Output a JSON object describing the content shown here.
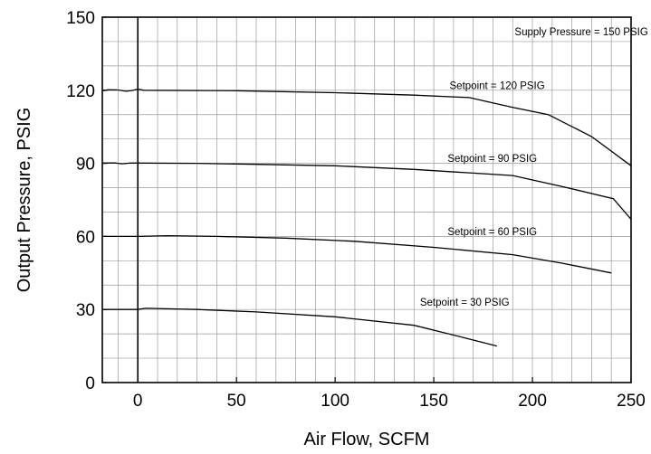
{
  "chart_data": {
    "type": "line",
    "xlabel": "Air Flow, SCFM",
    "ylabel": "Output Pressure, PSIG",
    "xlim": [
      -18,
      250
    ],
    "ylim": [
      0,
      150
    ],
    "xticks": [
      0,
      50,
      100,
      150,
      200,
      250
    ],
    "yticks": [
      0,
      30,
      60,
      90,
      120,
      150
    ],
    "x_tick_labels": [
      "0",
      "50",
      "100",
      "150",
      "200",
      "250"
    ],
    "y_tick_labels": [
      "0",
      "30",
      "60",
      "90",
      "120",
      "150"
    ],
    "x_minor_step": 10,
    "y_minor_step": 10,
    "grid": true,
    "zero_reference_line": 0,
    "annotations": [
      {
        "text": "Supply Pressure = 150 PSIG",
        "x": 191,
        "y": 144
      },
      {
        "text": "Setpoint = 120 PSIG",
        "x": 158,
        "y": 122
      },
      {
        "text": "Setpoint = 90 PSIG",
        "x": 157,
        "y": 92
      },
      {
        "text": "Setpoint = 60 PSIG",
        "x": 157,
        "y": 62
      },
      {
        "text": "Setpoint = 30 PSIG",
        "x": 143,
        "y": 33
      }
    ],
    "series": [
      {
        "values": [
          [
            -18,
            119.8
          ],
          [
            -15,
            120.2
          ],
          [
            -10,
            120.1
          ],
          [
            -6,
            119.6
          ],
          [
            -3,
            119.9
          ],
          [
            0,
            120.5
          ],
          [
            3,
            120.0
          ],
          [
            50,
            119.8
          ],
          [
            100,
            119.0
          ],
          [
            140,
            118.0
          ],
          [
            168,
            117.0
          ],
          [
            190,
            113.0
          ],
          [
            208,
            110.0
          ],
          [
            230,
            101.0
          ],
          [
            250,
            89.0
          ]
        ]
      },
      {
        "values": [
          [
            -18,
            90.1
          ],
          [
            -12,
            90.2
          ],
          [
            -8,
            89.8
          ],
          [
            -4,
            90.1
          ],
          [
            0,
            90.1
          ],
          [
            30,
            90.0
          ],
          [
            60,
            89.6
          ],
          [
            100,
            89.0
          ],
          [
            140,
            87.5
          ],
          [
            170,
            86.0
          ],
          [
            190,
            85.0
          ],
          [
            215,
            80.5
          ],
          [
            241,
            75.5
          ],
          [
            250,
            67.0
          ]
        ]
      },
      {
        "values": [
          [
            -18,
            60.0
          ],
          [
            0,
            60.0
          ],
          [
            15,
            60.3
          ],
          [
            40,
            60.0
          ],
          [
            75,
            59.3
          ],
          [
            110,
            58.0
          ],
          [
            150,
            55.5
          ],
          [
            190,
            52.5
          ],
          [
            215,
            49.0
          ],
          [
            240,
            45.0
          ]
        ]
      },
      {
        "values": [
          [
            -18,
            30.0
          ],
          [
            0,
            30.0
          ],
          [
            4,
            30.5
          ],
          [
            30,
            30.0
          ],
          [
            60,
            29.0
          ],
          [
            100,
            27.0
          ],
          [
            140,
            23.5
          ],
          [
            165,
            18.5
          ],
          [
            182,
            15.0
          ]
        ]
      }
    ]
  }
}
